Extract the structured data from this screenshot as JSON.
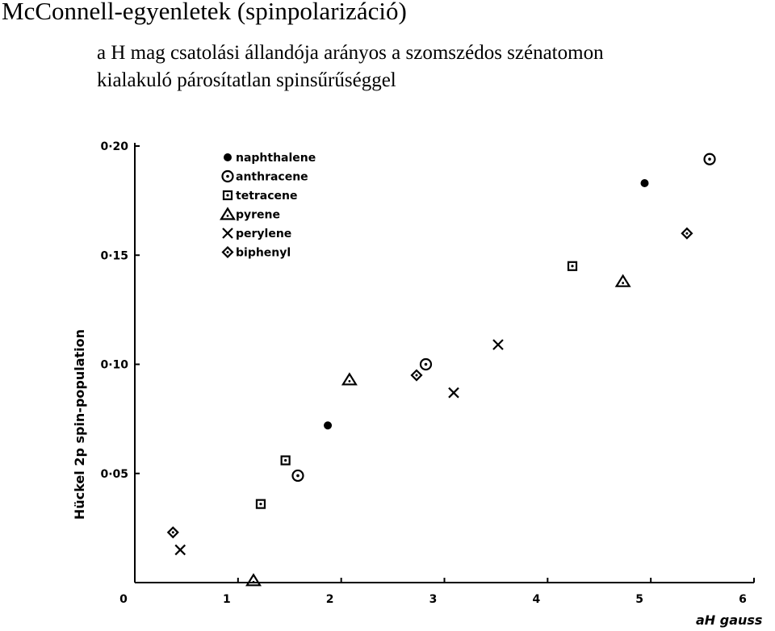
{
  "slide": {
    "title": "McConnell-egyenletek (spinpolarizáció)",
    "subtitle_line1": "a H mag csatolási állandója arányos a szomszédos szénatomon",
    "subtitle_line2": "kialakuló párosítatlan spinsűrűséggel"
  },
  "chart_data": {
    "type": "scatter",
    "xlabel": "aH gauss",
    "ylabel": "Hückel 2p spin-population",
    "xlim": [
      0,
      6
    ],
    "ylim": [
      0,
      0.2
    ],
    "x_ticks": [
      0,
      1,
      2,
      3,
      4,
      5,
      6
    ],
    "x_tick_labels": [
      "0",
      "1",
      "2",
      "3",
      "4",
      "5",
      "6"
    ],
    "y_ticks": [
      0.05,
      0.1,
      0.15,
      0.2
    ],
    "y_tick_labels": [
      "0·05",
      "0·10",
      "0·15",
      "0·20"
    ],
    "grid": false,
    "legend_position": "top-left",
    "series": [
      {
        "name": "naphthalene",
        "marker": "dot",
        "points": [
          [
            1.87,
            0.072
          ],
          [
            4.94,
            0.183
          ]
        ]
      },
      {
        "name": "anthracene",
        "marker": "circle-dot",
        "points": [
          [
            1.58,
            0.049
          ],
          [
            2.82,
            0.1
          ],
          [
            5.57,
            0.194
          ]
        ]
      },
      {
        "name": "tetracene",
        "marker": "square-dot",
        "points": [
          [
            1.22,
            0.036
          ],
          [
            1.46,
            0.056
          ],
          [
            4.24,
            0.145
          ]
        ]
      },
      {
        "name": "pyrene",
        "marker": "triangle",
        "points": [
          [
            1.15,
            0.001
          ],
          [
            2.08,
            0.093
          ],
          [
            4.73,
            0.138
          ]
        ]
      },
      {
        "name": "perylene",
        "marker": "cross",
        "points": [
          [
            0.44,
            0.015
          ],
          [
            3.09,
            0.087
          ],
          [
            3.52,
            0.109
          ]
        ]
      },
      {
        "name": "biphenyl",
        "marker": "diamond-dot",
        "points": [
          [
            0.37,
            0.023
          ],
          [
            2.73,
            0.095
          ],
          [
            5.35,
            0.16
          ]
        ]
      }
    ]
  }
}
